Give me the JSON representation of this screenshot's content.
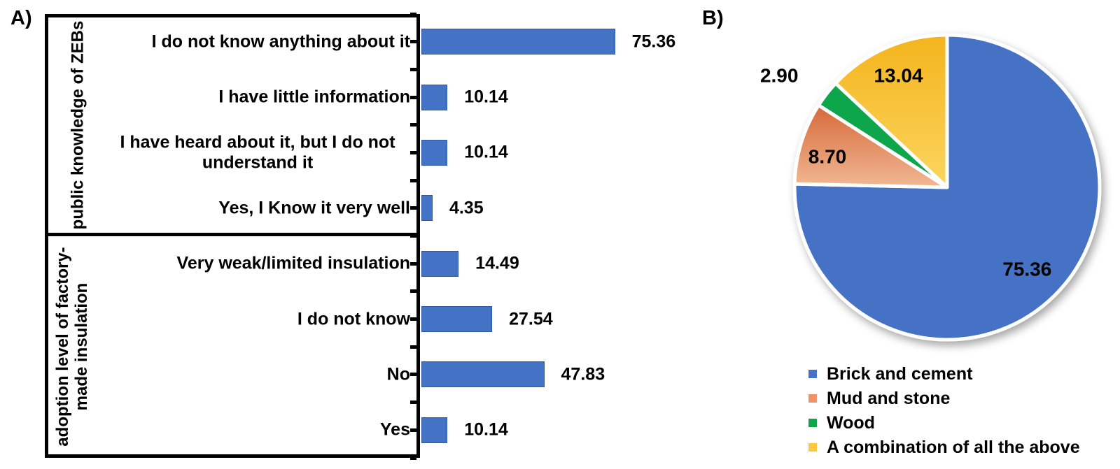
{
  "panel_a": {
    "label": "A)"
  },
  "panel_b": {
    "label": "B)"
  },
  "colors": {
    "bar_fill": "#4472C4",
    "bar_border": "#2D59A5",
    "axis_black": "#000000",
    "pie_blue": "#4472C4",
    "pie_orange_top": "#D5693A",
    "pie_orange_bottom": "#F2B893",
    "pie_green": "#0FA64B",
    "pie_yellow_top": "#F4B41D",
    "pie_yellow_bottom": "#FBD55F"
  },
  "chart_data": [
    {
      "type": "bar",
      "orientation": "horizontal",
      "unit": "percent",
      "value_format_decimals": 2,
      "xlim": [
        0,
        100
      ],
      "grid": false,
      "groups": [
        {
          "label": "public knowledge of ZEBs",
          "items": [
            {
              "label": "I do not know anything about it",
              "value": 75.36
            },
            {
              "label": "I have little information",
              "value": 10.14
            },
            {
              "label": "I have heard about it, but I do not\nunderstand it",
              "value": 10.14
            },
            {
              "label": "Yes, I Know it very well",
              "value": 4.35
            }
          ]
        },
        {
          "label": "adoption level of factory-\nmade insulation",
          "items": [
            {
              "label": "Very weak/limited insulation",
              "value": 14.49
            },
            {
              "label": "I do not know",
              "value": 27.54
            },
            {
              "label": "No",
              "value": 47.83
            },
            {
              "label": "Yes",
              "value": 10.14
            }
          ]
        }
      ]
    },
    {
      "type": "pie",
      "start_angle_deg": 0,
      "direction": "clockwise",
      "legend_position": "bottom-left",
      "slices": [
        {
          "label": "Brick and cement",
          "value": 75.36,
          "color": "#4472C4",
          "label_r": 0.75
        },
        {
          "label": "Mud and stone",
          "value": 8.7,
          "gradient": [
            "#D5693A",
            "#F2B893"
          ],
          "marker_color": "#EC9468",
          "label_r": 0.82,
          "label_dy": 8
        },
        {
          "label": "Wood",
          "value": 2.9,
          "color": "#0FA64B",
          "label_r": 1.3,
          "outside": true,
          "label_dx": -16,
          "label_dy": 14
        },
        {
          "label": "A combination of all the above",
          "value": 13.04,
          "gradient": [
            "#F4B41D",
            "#FBD55F"
          ],
          "marker_color": "#FCC93F",
          "label_r": 0.8
        }
      ]
    }
  ]
}
